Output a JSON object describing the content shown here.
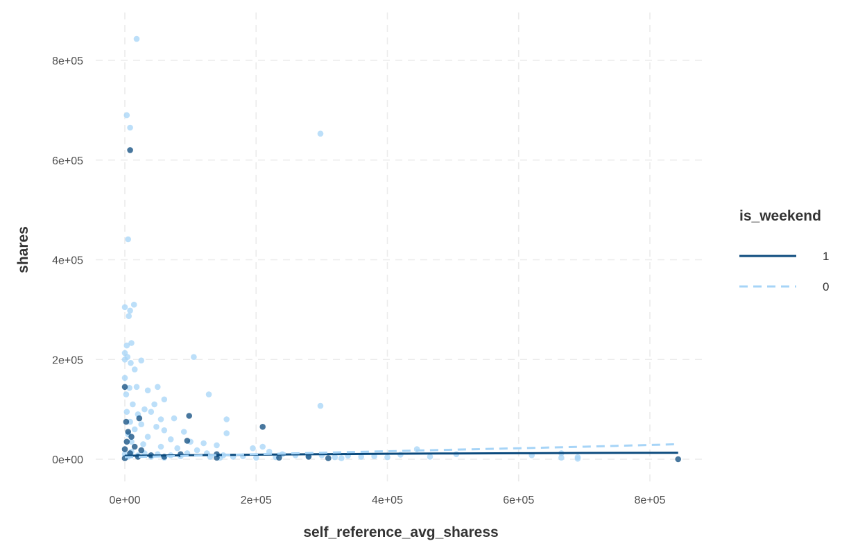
{
  "chart_data": {
    "type": "scatter",
    "title": "",
    "xlabel": "self_reference_avg_sharess",
    "ylabel": "shares",
    "xlim": [
      -45000,
      865000
    ],
    "ylim": [
      -45000,
      852000
    ],
    "x_ticks": [
      0,
      200000,
      400000,
      600000,
      800000
    ],
    "x_tick_labels": [
      "0e+00",
      "2e+05",
      "4e+05",
      "6e+05",
      "8e+05"
    ],
    "y_ticks": [
      0,
      200000,
      400000,
      600000,
      800000
    ],
    "y_tick_labels": [
      "0e+00",
      "2e+05",
      "4e+05",
      "6e+05",
      "8e+05"
    ],
    "grid": true,
    "grid_style": "dashed",
    "legend": {
      "title": "is_weekend",
      "position": "right",
      "entries": [
        {
          "label": "1",
          "color": "#0b4a7d",
          "linestyle": "solid"
        },
        {
          "label": "0",
          "color": "#a6d4f7",
          "linestyle": "dashed"
        }
      ]
    },
    "series": [
      {
        "name": "0",
        "color": "#a6d4f7",
        "points": [
          [
            18000,
            843000
          ],
          [
            3000,
            690000
          ],
          [
            8000,
            665000
          ],
          [
            298000,
            653000
          ],
          [
            5000,
            441000
          ],
          [
            14000,
            310000
          ],
          [
            0,
            305000
          ],
          [
            8000,
            298000
          ],
          [
            6000,
            287000
          ],
          [
            10000,
            233000
          ],
          [
            3000,
            228000
          ],
          [
            0,
            213000
          ],
          [
            4000,
            205000
          ],
          [
            105000,
            205000
          ],
          [
            0,
            200000
          ],
          [
            25000,
            198000
          ],
          [
            9000,
            193000
          ],
          [
            15000,
            180000
          ],
          [
            0,
            163000
          ],
          [
            18000,
            145000
          ],
          [
            7000,
            143000
          ],
          [
            50000,
            145000
          ],
          [
            35000,
            138000
          ],
          [
            2000,
            130000
          ],
          [
            128000,
            130000
          ],
          [
            60000,
            120000
          ],
          [
            45000,
            110000
          ],
          [
            298000,
            107000
          ],
          [
            12000,
            110000
          ],
          [
            30000,
            100000
          ],
          [
            3000,
            95000
          ],
          [
            20000,
            90000
          ],
          [
            40000,
            95000
          ],
          [
            55000,
            80000
          ],
          [
            75000,
            82000
          ],
          [
            155000,
            80000
          ],
          [
            8000,
            75000
          ],
          [
            25000,
            70000
          ],
          [
            48000,
            65000
          ],
          [
            60000,
            58000
          ],
          [
            90000,
            55000
          ],
          [
            155000,
            52000
          ],
          [
            15000,
            60000
          ],
          [
            5000,
            50000
          ],
          [
            35000,
            45000
          ],
          [
            70000,
            40000
          ],
          [
            100000,
            35000
          ],
          [
            120000,
            32000
          ],
          [
            140000,
            28000
          ],
          [
            10000,
            35000
          ],
          [
            28000,
            30000
          ],
          [
            55000,
            25000
          ],
          [
            80000,
            22000
          ],
          [
            110000,
            18000
          ],
          [
            125000,
            12000
          ],
          [
            150000,
            8000
          ],
          [
            165000,
            5000
          ],
          [
            180000,
            6000
          ],
          [
            195000,
            22000
          ],
          [
            210000,
            25000
          ],
          [
            220000,
            15000
          ],
          [
            240000,
            10000
          ],
          [
            260000,
            8000
          ],
          [
            280000,
            6000
          ],
          [
            300000,
            8000
          ],
          [
            320000,
            4000
          ],
          [
            340000,
            7000
          ],
          [
            360000,
            5000
          ],
          [
            400000,
            4000
          ],
          [
            420000,
            9000
          ],
          [
            445000,
            20000
          ],
          [
            465000,
            5000
          ],
          [
            505000,
            10000
          ],
          [
            620000,
            8000
          ],
          [
            665000,
            12000
          ],
          [
            690000,
            4000
          ],
          [
            0,
            10000
          ],
          [
            5000,
            5000
          ],
          [
            10000,
            15000
          ],
          [
            20000,
            8000
          ],
          [
            30000,
            12000
          ],
          [
            40000,
            5000
          ],
          [
            50000,
            10000
          ],
          [
            60000,
            3000
          ],
          [
            70000,
            8000
          ],
          [
            85000,
            6000
          ],
          [
            95000,
            12000
          ],
          [
            130000,
            5000
          ],
          [
            145000,
            3000
          ],
          [
            200000,
            3000
          ],
          [
            230000,
            4000
          ],
          [
            330000,
            2000
          ],
          [
            380000,
            6000
          ],
          [
            665000,
            3000
          ],
          [
            690000,
            1000
          ]
        ]
      },
      {
        "name": "1",
        "color": "#0b4a7d",
        "points": [
          [
            8000,
            620000
          ],
          [
            22000,
            82000
          ],
          [
            98000,
            87000
          ],
          [
            210000,
            65000
          ],
          [
            0,
            145000
          ],
          [
            2000,
            75000
          ],
          [
            5000,
            55000
          ],
          [
            10000,
            45000
          ],
          [
            3000,
            35000
          ],
          [
            15000,
            25000
          ],
          [
            25000,
            18000
          ],
          [
            0,
            20000
          ],
          [
            8000,
            12000
          ],
          [
            95000,
            37000
          ],
          [
            140000,
            10000
          ],
          [
            40000,
            8000
          ],
          [
            60000,
            5000
          ],
          [
            85000,
            10000
          ],
          [
            140000,
            3000
          ],
          [
            235000,
            3000
          ],
          [
            280000,
            5000
          ],
          [
            310000,
            2000
          ],
          [
            843000,
            0
          ],
          [
            20000,
            5000
          ],
          [
            0,
            2000
          ]
        ]
      }
    ],
    "lines": [
      {
        "name": "1",
        "color": "#0b4a7d",
        "linestyle": "solid",
        "x": [
          0,
          100000,
          200000,
          300000,
          400000,
          500000,
          600000,
          700000,
          843000
        ],
        "y": [
          7000,
          8000,
          9000,
          10000,
          11000,
          11500,
          12000,
          12500,
          13000
        ]
      },
      {
        "name": "0",
        "color": "#a6d4f7",
        "linestyle": "dashed",
        "x": [
          0,
          100000,
          200000,
          300000,
          400000,
          500000,
          600000,
          700000,
          843000
        ],
        "y": [
          4000,
          7000,
          10000,
          13000,
          16000,
          19000,
          22000,
          25000,
          30000
        ]
      }
    ]
  }
}
